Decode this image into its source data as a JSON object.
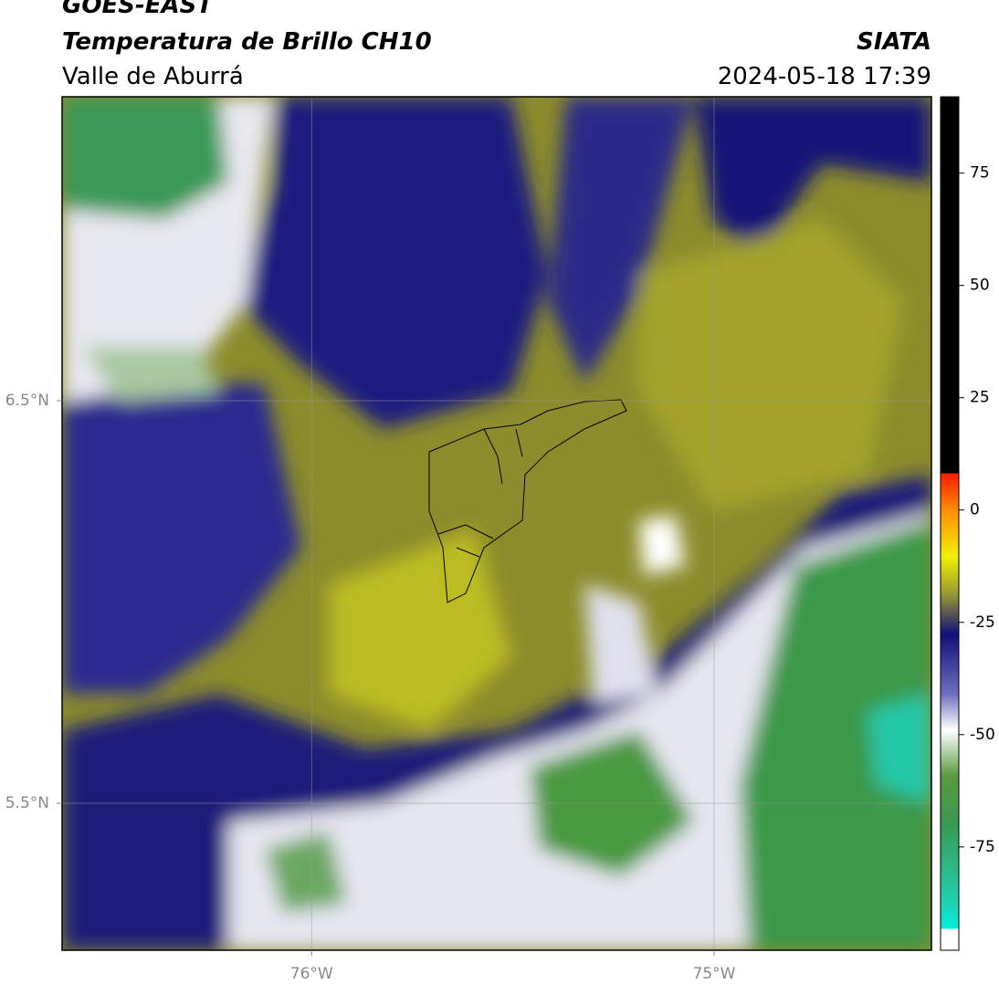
{
  "header": {
    "satellite": "GOES-EAST",
    "product": "Temperatura de Brillo CH10",
    "region": "Valle de Aburrá",
    "source": "SIATA",
    "datetime": "2024-05-18 17:39"
  },
  "map": {
    "xlim": [
      -76.62,
      -74.46
    ],
    "ylim": [
      5.135,
      7.255
    ],
    "xticks": [
      {
        "value": -76,
        "label": "76°W"
      },
      {
        "value": -75,
        "label": "75°W"
      }
    ],
    "yticks": [
      {
        "value": 6.5,
        "label": "6.5°N"
      },
      {
        "value": 5.5,
        "label": "5.5°N"
      }
    ]
  },
  "colorbar": {
    "lim": [
      -98,
      92
    ],
    "ticks": [
      75,
      50,
      25,
      0,
      -25,
      -50,
      -75
    ]
  }
}
